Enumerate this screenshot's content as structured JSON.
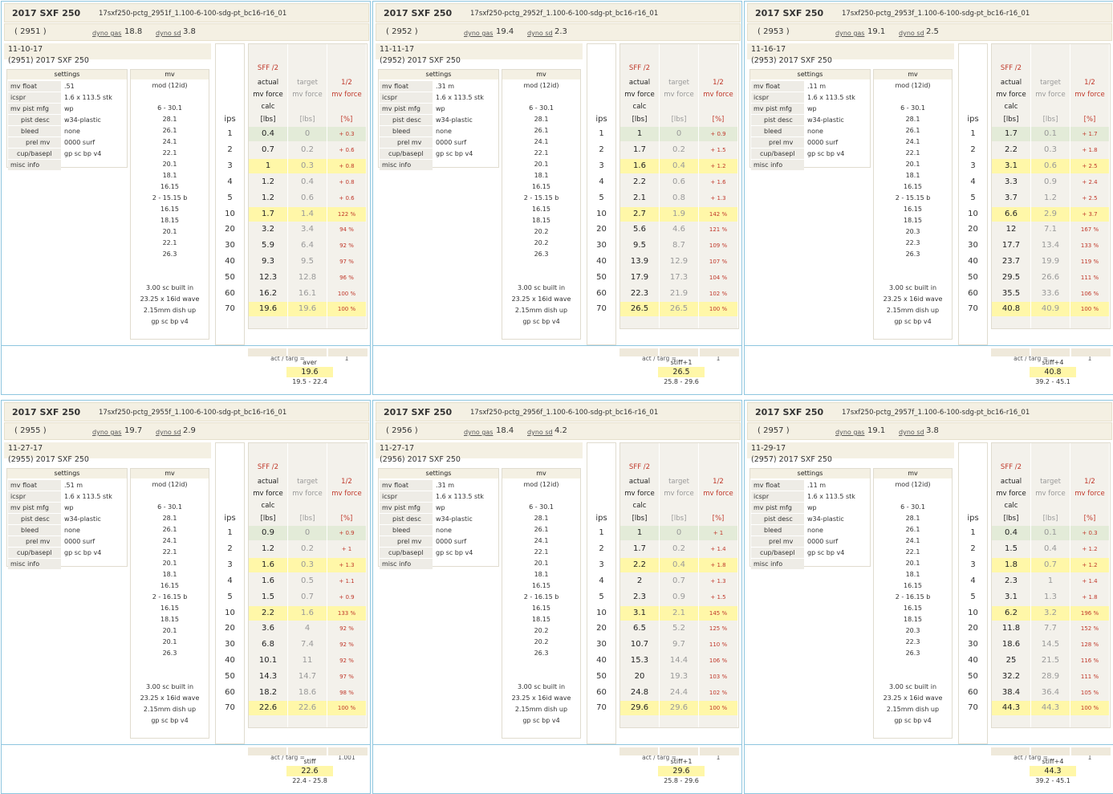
{
  "common": {
    "title": "2017 SXF 250",
    "dyno_gas_label": "dyno gas",
    "dyno_sd_label": "dyno sd",
    "settings_header": "settings",
    "mv_header": "mv",
    "sff_label": "SFF /2",
    "col_actual": "actual",
    "col_target": "target",
    "col_half": "1/2",
    "col_mvforce": "mv force",
    "calc_label": "calc",
    "ips_label": "ips",
    "unit_lbs": "[lbs]",
    "unit_pct": "[%]",
    "act_targ_label": "act / targ =",
    "setting_keys": [
      "mv float",
      "icspr",
      "mv pist mfg",
      "pist desc",
      "bleed",
      "prel mv",
      "cup/basepl",
      "misc info"
    ],
    "ips_values": [
      "1",
      "2",
      "3",
      "4",
      "5",
      "10",
      "20",
      "30",
      "40",
      "50",
      "60",
      "70"
    ],
    "mv_notes": [
      "3.00 sc built in",
      "23.25 x 16id wave",
      "2.15mm dish up",
      "gp sc bp v4"
    ]
  },
  "panels": [
    {
      "file": "17sxf250-pctg_2951f_1.100-6-100-sdg-pt_bc16-r16_01",
      "id": "( 2951 )",
      "dyno_gas": "18.8",
      "dyno_sd": "3.8",
      "date": "11-10-17",
      "info_line": "(2951)   2017 SXF 250",
      "settings": [
        ".51",
        "1.6 x 113.5 stk",
        "wp",
        "w34-plastic",
        "none",
        "0000 surf",
        "gp sc bp v4",
        ""
      ],
      "mv": [
        "mod (12id)",
        "",
        "6 - 30.1",
        "28.1",
        "26.1",
        "24.1",
        "22.1",
        "20.1",
        "18.1",
        "16.15",
        "2 - 15.15 b",
        "16.15",
        "18.15",
        "20.1",
        "22.1",
        "26.3"
      ],
      "actual": [
        "0.4",
        "0.7",
        "1",
        "1.2",
        "1.2",
        "1.7",
        "3.2",
        "5.9",
        "9.3",
        "12.3",
        "16.2",
        "19.6"
      ],
      "target": [
        "0",
        "0.2",
        "0.3",
        "0.4",
        "0.6",
        "1.4",
        "3.4",
        "6.4",
        "9.5",
        "12.8",
        "16.1",
        "19.6"
      ],
      "half": [
        "+ 0.3",
        "+ 0.6",
        "+ 0.8",
        "+ 0.8",
        "+ 0.6",
        "122 %",
        "94 %",
        "92 %",
        "97 %",
        "96 %",
        "100 %",
        "100 %"
      ],
      "act_targ": "1",
      "summary_label": "aver",
      "summary_value": "19.6",
      "summary_range": "19.5 - 22.4"
    },
    {
      "file": "17sxf250-pctg_2952f_1.100-6-100-sdg-pt_bc16-r16_01",
      "id": "( 2952 )",
      "dyno_gas": "19.4",
      "dyno_sd": "2.3",
      "date": "11-11-17",
      "info_line": "(2952)   2017 SXF 250",
      "settings": [
        ".31 m",
        "1.6 x 113.5 stk",
        "wp",
        "w34-plastic",
        "none",
        "0000 surf",
        "gp sc bp v4",
        ""
      ],
      "mv": [
        "mod (12id)",
        "",
        "6 - 30.1",
        "28.1",
        "26.1",
        "24.1",
        "22.1",
        "20.1",
        "18.1",
        "16.15",
        "2 - 15.15 b",
        "16.15",
        "18.15",
        "20.2",
        "20.2",
        "26.3"
      ],
      "actual": [
        "1",
        "1.7",
        "1.6",
        "2.2",
        "2.1",
        "2.7",
        "5.6",
        "9.5",
        "13.9",
        "17.9",
        "22.3",
        "26.5"
      ],
      "target": [
        "0",
        "0.2",
        "0.4",
        "0.6",
        "0.8",
        "1.9",
        "4.6",
        "8.7",
        "12.9",
        "17.3",
        "21.9",
        "26.5"
      ],
      "half": [
        "+ 0.9",
        "+ 1.5",
        "+ 1.2",
        "+ 1.6",
        "+ 1.3",
        "142 %",
        "121 %",
        "109 %",
        "107 %",
        "104 %",
        "102 %",
        "100 %"
      ],
      "act_targ": "1",
      "summary_label": "stiff+1",
      "summary_value": "26.5",
      "summary_range": "25.8 - 29.6"
    },
    {
      "file": "17sxf250-pctg_2953f_1.100-6-100-sdg-pt_bc16-r16_01",
      "id": "( 2953 )",
      "dyno_gas": "19.1",
      "dyno_sd": "2.5",
      "date": "11-16-17",
      "info_line": "(2953)   2017 SXF 250",
      "settings": [
        ".11 m",
        "1.6 x 113.5 stk",
        "wp",
        "w34-plastic",
        "none",
        "0000 surf",
        "gp sc bp v4",
        ""
      ],
      "mv": [
        "mod (12id)",
        "",
        "6 - 30.1",
        "28.1",
        "26.1",
        "24.1",
        "22.1",
        "20.1",
        "18.1",
        "16.15",
        "2 - 15.15 b",
        "16.15",
        "18.15",
        "20.3",
        "22.3",
        "26.3"
      ],
      "actual": [
        "1.7",
        "2.2",
        "3.1",
        "3.3",
        "3.7",
        "6.6",
        "12",
        "17.7",
        "23.7",
        "29.5",
        "35.5",
        "40.8"
      ],
      "target": [
        "0.1",
        "0.3",
        "0.6",
        "0.9",
        "1.2",
        "2.9",
        "7.1",
        "13.4",
        "19.9",
        "26.6",
        "33.6",
        "40.9"
      ],
      "half": [
        "+ 1.7",
        "+ 1.8",
        "+ 2.5",
        "+ 2.4",
        "+ 2.5",
        "+ 3.7",
        "167 %",
        "133 %",
        "119 %",
        "111 %",
        "106 %",
        "100 %"
      ],
      "act_targ": "1",
      "summary_label": "stiff+4",
      "summary_value": "40.8",
      "summary_range": "39.2 - 45.1"
    },
    {
      "file": "17sxf250-pctg_2955f_1.100-6-100-sdg-pt_bc16-r16_01",
      "id": "( 2955 )",
      "dyno_gas": "19.7",
      "dyno_sd": "2.9",
      "date": "11-27-17",
      "info_line": "(2955)   2017 SXF 250",
      "settings": [
        ".51 m",
        "1.6 x 113.5 stk",
        "wp",
        "w34-plastic",
        "none",
        "0000 surf",
        "gp sc bp v4",
        ""
      ],
      "mv": [
        "mod (12id)",
        "",
        "6 - 30.1",
        "28.1",
        "26.1",
        "24.1",
        "22.1",
        "20.1",
        "18.1",
        "16.15",
        "2 - 16.15 b",
        "16.15",
        "18.15",
        "20.1",
        "20.1",
        "26.3"
      ],
      "actual": [
        "0.9",
        "1.2",
        "1.6",
        "1.6",
        "1.5",
        "2.2",
        "3.6",
        "6.8",
        "10.1",
        "14.3",
        "18.2",
        "22.6"
      ],
      "target": [
        "0",
        "0.2",
        "0.3",
        "0.5",
        "0.7",
        "1.6",
        "4",
        "7.4",
        "11",
        "14.7",
        "18.6",
        "22.6"
      ],
      "half": [
        "+ 0.9",
        "+ 1",
        "+ 1.3",
        "+ 1.1",
        "+ 0.9",
        "133 %",
        "92 %",
        "92 %",
        "92 %",
        "97 %",
        "98 %",
        "100 %"
      ],
      "act_targ": "1.001",
      "summary_label": "stiff",
      "summary_value": "22.6",
      "summary_range": "22.4 - 25.8"
    },
    {
      "file": "17sxf250-pctg_2956f_1.100-6-100-sdg-pt_bc16-r16_01",
      "id": "( 2956 )",
      "dyno_gas": "18.4",
      "dyno_sd": "4.2",
      "date": "11-27-17",
      "info_line": "(2956)   2017 SXF 250",
      "settings": [
        ".31 m",
        "1.6 x 113.5 stk",
        "wp",
        "w34-plastic",
        "none",
        "0000 surf",
        "gp sc bp v4",
        ""
      ],
      "mv": [
        "mod (12id)",
        "",
        "6 - 30.1",
        "28.1",
        "26.1",
        "24.1",
        "22.1",
        "20.1",
        "18.1",
        "16.15",
        "2 - 16.15 b",
        "16.15",
        "18.15",
        "20.2",
        "20.2",
        "26.3"
      ],
      "actual": [
        "1",
        "1.7",
        "2.2",
        "2",
        "2.3",
        "3.1",
        "6.5",
        "10.7",
        "15.3",
        "20",
        "24.8",
        "29.6"
      ],
      "target": [
        "0",
        "0.2",
        "0.4",
        "0.7",
        "0.9",
        "2.1",
        "5.2",
        "9.7",
        "14.4",
        "19.3",
        "24.4",
        "29.6"
      ],
      "half": [
        "+ 1",
        "+ 1.4",
        "+ 1.8",
        "+ 1.3",
        "+ 1.5",
        "145 %",
        "125 %",
        "110 %",
        "106 %",
        "103 %",
        "102 %",
        "100 %"
      ],
      "act_targ": "1",
      "summary_label": "stiff+1",
      "summary_value": "29.6",
      "summary_range": "25.8 - 29.6"
    },
    {
      "file": "17sxf250-pctg_2957f_1.100-6-100-sdg-pt_bc16-r16_01",
      "id": "( 2957 )",
      "dyno_gas": "19.1",
      "dyno_sd": "3.8",
      "date": "11-29-17",
      "info_line": "(2957)   2017 SXF 250",
      "settings": [
        ".11 m",
        "1.6 x 113.5 stk",
        "wp",
        "w34-plastic",
        "none",
        "0000 surf",
        "gp sc bp v4",
        ""
      ],
      "mv": [
        "mod (12id)",
        "",
        "6 - 30.1",
        "28.1",
        "26.1",
        "24.1",
        "22.1",
        "20.1",
        "18.1",
        "16.15",
        "2 - 16.15 b",
        "16.15",
        "18.15",
        "20.3",
        "22.3",
        "26.3"
      ],
      "actual": [
        "0.4",
        "1.5",
        "1.8",
        "2.3",
        "3.1",
        "6.2",
        "11.8",
        "18.6",
        "25",
        "32.2",
        "38.4",
        "44.3"
      ],
      "target": [
        "0.1",
        "0.4",
        "0.7",
        "1",
        "1.3",
        "3.2",
        "7.7",
        "14.5",
        "21.5",
        "28.9",
        "36.4",
        "44.3"
      ],
      "half": [
        "+ 0.3",
        "+ 1.2",
        "+ 1.2",
        "+ 1.4",
        "+ 1.8",
        "196 %",
        "152 %",
        "128 %",
        "116 %",
        "111 %",
        "105 %",
        "100 %"
      ],
      "act_targ": "1",
      "summary_label": "stiff+4",
      "summary_value": "44.3",
      "summary_range": "39.2 - 45.1"
    }
  ]
}
